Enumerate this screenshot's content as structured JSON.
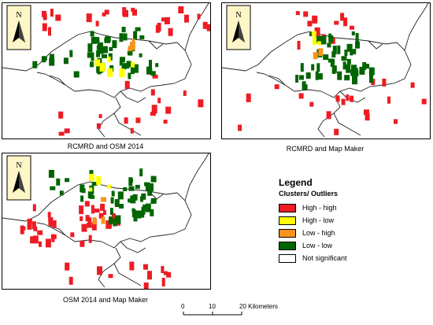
{
  "maps": [
    {
      "id": "map1",
      "caption": "RCMRD and OSM 2014",
      "north_label": "N"
    },
    {
      "id": "map2",
      "caption": "RCMRD and Map Maker",
      "north_label": "N"
    },
    {
      "id": "map3",
      "caption": "OSM 2014 and Map Maker",
      "north_label": "N"
    }
  ],
  "legend": {
    "title": "Legend",
    "subtitle": "Clusters/ Outliers",
    "items": [
      {
        "label": "High - high",
        "color": "#ed1c24"
      },
      {
        "label": "High - low",
        "color": "#ffff00"
      },
      {
        "label": "Low - high",
        "color": "#f7941d"
      },
      {
        "label": "Low - low",
        "color": "#006400"
      },
      {
        "label": "Not significant",
        "color": "#ffffff"
      }
    ]
  },
  "scale_bar": {
    "tick_0": "0",
    "tick_10": "10",
    "tick_20": "20 Kilometers"
  }
}
